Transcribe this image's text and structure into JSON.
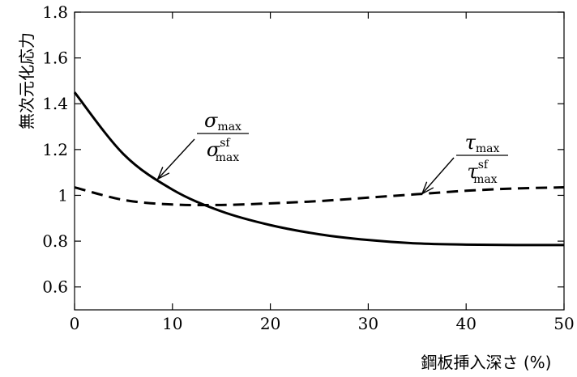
{
  "chart_data": {
    "type": "line",
    "title": "",
    "xlabel": "鋼板挿入深さ (%)",
    "ylabel": "無次元化応力",
    "xlim": [
      0,
      50
    ],
    "ylim": [
      0.5,
      1.8
    ],
    "x_ticks": [
      "0",
      "10",
      "20",
      "30",
      "40",
      "50"
    ],
    "y_ticks": [
      "0.6",
      "0.8",
      "1",
      "1.2",
      "1.4",
      "1.6",
      "1.8"
    ],
    "grid": false,
    "series": [
      {
        "name": "σmax / σmax^sf",
        "style": "solid",
        "x": [
          0,
          5,
          10,
          15,
          20,
          25,
          30,
          35,
          40,
          45,
          50
        ],
        "values": [
          1.45,
          1.18,
          1.025,
          0.93,
          0.87,
          0.83,
          0.805,
          0.79,
          0.785,
          0.783,
          0.783
        ]
      },
      {
        "name": "τmax / τmax^sf",
        "style": "dashed",
        "x": [
          0,
          5,
          10,
          15,
          20,
          25,
          30,
          35,
          40,
          45,
          50
        ],
        "values": [
          1.035,
          0.98,
          0.96,
          0.958,
          0.965,
          0.975,
          0.99,
          1.005,
          1.02,
          1.03,
          1.035
        ]
      }
    ],
    "annotations": [
      {
        "num_sym": "σ",
        "num_sub": "max",
        "den_sym": "σ",
        "den_sub": "max",
        "den_sup": "sf",
        "arrow_target_x": 8.5
      },
      {
        "num_sym": "τ",
        "num_sub": "max",
        "den_sym": "τ",
        "den_sub": "max",
        "den_sup": "sf",
        "arrow_target_x": 35.5
      }
    ]
  }
}
